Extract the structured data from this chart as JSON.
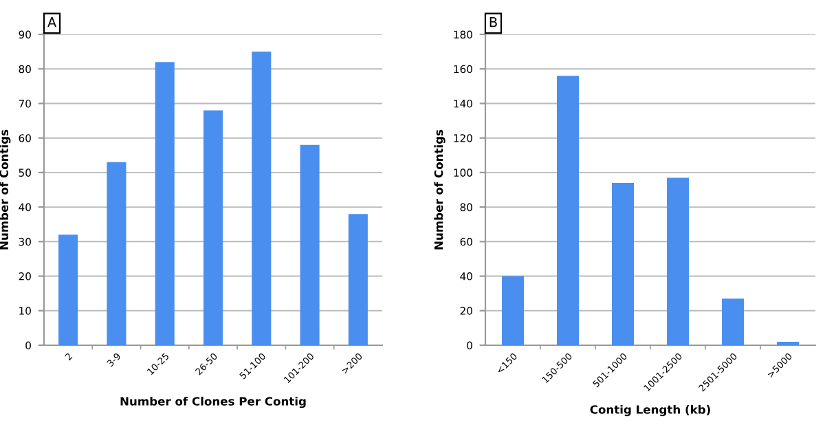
{
  "chart_data": [
    {
      "type": "bar",
      "title": "A",
      "xlabel": "Number of Clones Per Contig",
      "ylabel": "Number of Contigs",
      "categories": [
        "2",
        "3-9",
        "10-25",
        "26-50",
        "51-100",
        "101-200",
        ">200"
      ],
      "values": [
        32,
        53,
        82,
        68,
        85,
        58,
        38
      ],
      "color": "#4a8ff0",
      "ylim": [
        0,
        90
      ],
      "yticks": [
        0,
        10,
        20,
        30,
        40,
        50,
        60,
        70,
        80,
        90
      ],
      "grid": "y"
    },
    {
      "type": "bar",
      "title": "B",
      "xlabel": "Contig Length (kb)",
      "ylabel": "Number of Contigs",
      "categories": [
        "<150",
        "150-500",
        "501-1000",
        "1001-2500",
        "2501-5000",
        ">5000"
      ],
      "values": [
        40,
        156,
        94,
        97,
        27,
        2
      ],
      "color": "#4a8ff0",
      "ylim": [
        0,
        180
      ],
      "yticks": [
        0,
        20,
        40,
        60,
        80,
        100,
        120,
        140,
        160,
        180
      ],
      "grid": "y"
    }
  ]
}
